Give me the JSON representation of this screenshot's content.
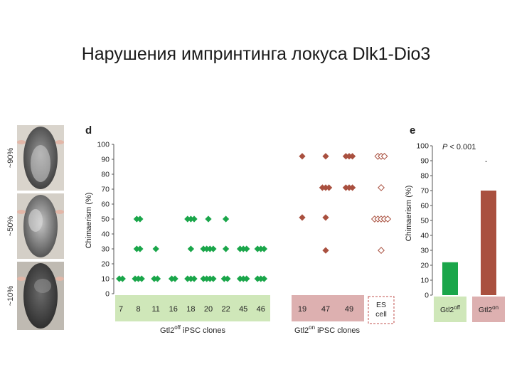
{
  "slide": {
    "title": "Нарушения импринтинга локуса Dlk1-Dio3"
  },
  "mouse_panel": {
    "labels": [
      "~90%",
      "~50%",
      "~10%"
    ]
  },
  "colors": {
    "green": "#1aa64a",
    "brown": "#a9503f",
    "green_band": "#cfe7b9",
    "pink_band": "#ddb0b0",
    "es_border": "#c0504d"
  },
  "chart_data": [
    {
      "panel": "d",
      "type": "scatter",
      "ylabel": "Chimaerism (%)",
      "ylim": [
        0,
        100
      ],
      "yticks": [
        0,
        10,
        20,
        30,
        40,
        50,
        60,
        70,
        80,
        90,
        100
      ],
      "off_group_label": "Gtl2off iPSC clones",
      "on_group_label": "Gtl2on iPSC clones",
      "off_group_text": {
        "base": "Gtl2",
        "sup": "off",
        "rest": " iPSC clones"
      },
      "on_group_text": {
        "base": "Gtl2",
        "sup": "on",
        "rest": " iPSC clones"
      },
      "off_clones": [
        {
          "label": "7",
          "points": [
            [
              10,
              2
            ]
          ]
        },
        {
          "label": "8",
          "points": [
            [
              50,
              2
            ],
            [
              30,
              2
            ],
            [
              10,
              3
            ]
          ]
        },
        {
          "label": "11",
          "points": [
            [
              30,
              1
            ],
            [
              10,
              2
            ]
          ]
        },
        {
          "label": "16",
          "points": [
            [
              10,
              2
            ]
          ]
        },
        {
          "label": "18",
          "points": [
            [
              50,
              3
            ],
            [
              30,
              1
            ],
            [
              10,
              3
            ]
          ]
        },
        {
          "label": "20",
          "points": [
            [
              50,
              1
            ],
            [
              30,
              4
            ],
            [
              10,
              4
            ]
          ]
        },
        {
          "label": "22",
          "points": [
            [
              50,
              1
            ],
            [
              30,
              1
            ],
            [
              10,
              2
            ]
          ]
        },
        {
          "label": "45",
          "points": [
            [
              30,
              3
            ],
            [
              10,
              3
            ]
          ]
        },
        {
          "label": "46",
          "points": [
            [
              30,
              3
            ],
            [
              10,
              3
            ]
          ]
        }
      ],
      "on_clones": [
        {
          "label": "19",
          "points": [
            [
              92,
              1
            ],
            [
              51,
              1
            ]
          ]
        },
        {
          "label": "47",
          "points": [
            [
              92,
              1
            ],
            [
              71,
              3
            ],
            [
              51,
              1
            ],
            [
              29,
              1
            ]
          ]
        },
        {
          "label": "49",
          "points": [
            [
              92,
              3
            ],
            [
              71,
              3
            ]
          ]
        }
      ],
      "es_label_1": "ES",
      "es_label_2": "cell",
      "es_points": [
        [
          92,
          3
        ],
        [
          71,
          1
        ],
        [
          50,
          5
        ],
        [
          29,
          1
        ]
      ]
    },
    {
      "panel": "e",
      "type": "bar",
      "ylabel": "Chimaerism (%)",
      "ylim": [
        0,
        100
      ],
      "yticks": [
        0,
        10,
        20,
        30,
        40,
        50,
        60,
        70,
        80,
        90,
        100
      ],
      "annotation_p": "P",
      "annotation_rest": " < 0.001",
      "annotation_dash": "-",
      "categories": [
        {
          "base": "Gtl2",
          "sup": "off"
        },
        {
          "base": "Gtl2",
          "sup": "on"
        }
      ],
      "values": [
        22,
        70
      ]
    }
  ]
}
